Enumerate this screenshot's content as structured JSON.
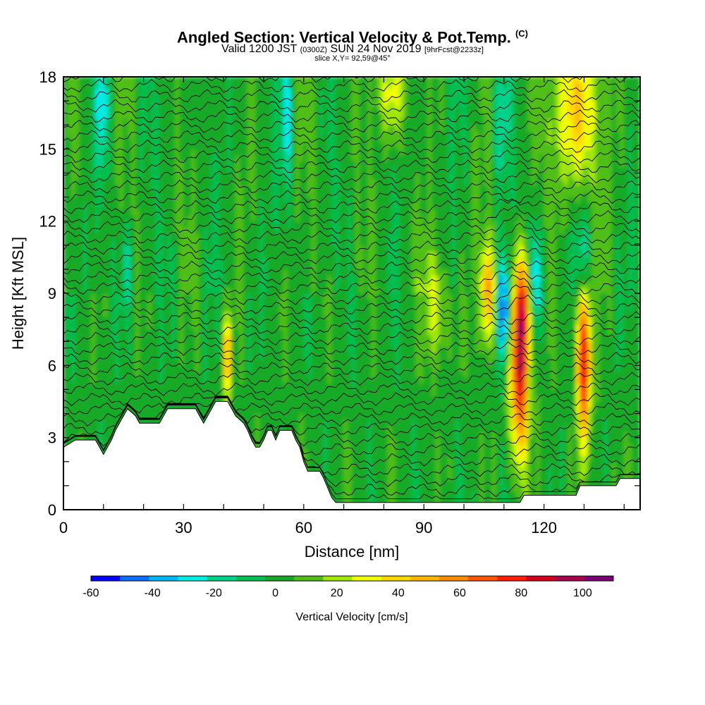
{
  "header": {
    "title": "Angled Section: Vertical Velocity & Pot.Temp.",
    "title_unit": "(C)",
    "valid_prefix": "Valid 1200 JST",
    "valid_zulu": "(0300Z)",
    "valid_date": "SUN 24 Nov 2019",
    "forecast": "[9hrFcst@2233z]",
    "slice": "slice X,Y= 92,59@45°"
  },
  "chart_data": {
    "type": "heatmap",
    "xlabel": "Distance [nm]",
    "ylabel": "Height [Kft MSL]",
    "xlim": [
      0,
      144
    ],
    "ylim": [
      0,
      18
    ],
    "xticks": [
      0,
      30,
      60,
      90,
      120
    ],
    "yticks": [
      0,
      3,
      6,
      9,
      12,
      15,
      18
    ],
    "terrain_kft": [
      [
        0,
        2.6
      ],
      [
        3,
        2.9
      ],
      [
        8,
        2.9
      ],
      [
        9,
        2.6
      ],
      [
        10,
        2.3
      ],
      [
        11,
        2.6
      ],
      [
        12,
        2.9
      ],
      [
        13,
        3.3
      ],
      [
        14,
        3.6
      ],
      [
        15,
        3.9
      ],
      [
        16,
        4.2
      ],
      [
        18,
        3.9
      ],
      [
        19,
        3.6
      ],
      [
        24,
        3.6
      ],
      [
        25,
        3.9
      ],
      [
        26,
        4.2
      ],
      [
        33,
        4.2
      ],
      [
        34,
        3.9
      ],
      [
        35,
        3.6
      ],
      [
        36,
        3.9
      ],
      [
        37,
        4.2
      ],
      [
        38,
        4.5
      ],
      [
        41,
        4.5
      ],
      [
        42,
        4.2
      ],
      [
        43,
        3.9
      ],
      [
        45,
        3.6
      ],
      [
        46,
        3.3
      ],
      [
        47,
        2.9
      ],
      [
        48,
        2.6
      ],
      [
        49,
        2.6
      ],
      [
        50,
        2.9
      ],
      [
        51,
        3.3
      ],
      [
        52,
        3.3
      ],
      [
        53,
        2.9
      ],
      [
        54,
        3.3
      ],
      [
        57,
        3.3
      ],
      [
        58,
        2.9
      ],
      [
        59,
        2.6
      ],
      [
        60,
        2.0
      ],
      [
        61,
        1.6
      ],
      [
        64,
        1.6
      ],
      [
        65,
        1.3
      ],
      [
        66,
        0.9
      ],
      [
        67,
        0.5
      ],
      [
        68,
        0.3
      ],
      [
        114,
        0.3
      ],
      [
        115,
        0.6
      ],
      [
        128,
        0.6
      ],
      [
        129,
        1.0
      ],
      [
        138,
        1.0
      ],
      [
        139,
        1.3
      ],
      [
        144,
        1.3
      ]
    ],
    "colorbar": {
      "label": "Vertical Velocity [cm/s]",
      "ticks": [
        -60,
        -40,
        -20,
        0,
        20,
        40,
        60,
        80,
        100
      ],
      "bins": [
        -60,
        -50,
        -40,
        -30,
        -20,
        -10,
        0,
        10,
        20,
        30,
        40,
        50,
        60,
        70,
        80,
        90,
        100,
        110
      ],
      "colors": [
        "#0000ff",
        "#0a6eff",
        "#00b4ff",
        "#00ebe6",
        "#00d28c",
        "#00be50",
        "#14aa28",
        "#50be14",
        "#a0e60a",
        "#f0ff00",
        "#ffd700",
        "#ffb400",
        "#ff8c00",
        "#ff5500",
        "#ff1e00",
        "#d2001e",
        "#aa0050",
        "#7d0078"
      ]
    },
    "features": [
      {
        "kind": "updraft",
        "x": 41,
        "y": 6.3,
        "sx": 0.7,
        "sy": 1.2,
        "w": 50
      },
      {
        "kind": "updraft",
        "x": 93,
        "y": 8.5,
        "sx": 2.0,
        "sy": 1.6,
        "w": 30
      },
      {
        "kind": "updraft",
        "x": 106,
        "y": 9.0,
        "sx": 1.3,
        "sy": 1.5,
        "w": 60
      },
      {
        "kind": "updraft",
        "x": 114,
        "y": 5.8,
        "sx": 1.6,
        "sy": 2.6,
        "w": 88
      },
      {
        "kind": "updraft",
        "x": 115,
        "y": 8.6,
        "sx": 1.5,
        "sy": 1.5,
        "w": 48
      },
      {
        "kind": "updraft",
        "x": 130,
        "y": 6.2,
        "sx": 1.2,
        "sy": 2.3,
        "w": 90
      },
      {
        "kind": "updraft",
        "x": 128,
        "y": 16.6,
        "sx": 4.0,
        "sy": 2.3,
        "w": 45
      },
      {
        "kind": "updraft",
        "x": 82,
        "y": 17.3,
        "sx": 2.8,
        "sy": 1.4,
        "w": 28
      },
      {
        "kind": "downdraft",
        "x": 110,
        "y": 8.4,
        "sx": 1.2,
        "sy": 1.6,
        "w": -55
      },
      {
        "kind": "downdraft",
        "x": 118,
        "y": 9.6,
        "sx": 1.1,
        "sy": 1.5,
        "w": -40
      },
      {
        "kind": "downdraft",
        "x": 109,
        "y": 16.0,
        "sx": 1.2,
        "sy": 1.8,
        "w": -25
      },
      {
        "kind": "downdraft",
        "x": 56,
        "y": 16.2,
        "sx": 1.0,
        "sy": 2.0,
        "w": -28
      },
      {
        "kind": "downdraft",
        "x": 10,
        "y": 16.7,
        "sx": 1.2,
        "sy": 1.8,
        "w": -26
      },
      {
        "kind": "downdraft",
        "x": 16,
        "y": 10.0,
        "sx": 1.0,
        "sy": 1.3,
        "w": -22
      },
      {
        "kind": "downdraft",
        "x": 130,
        "y": 10.5,
        "sx": 1.2,
        "sy": 1.3,
        "w": -26
      }
    ]
  }
}
